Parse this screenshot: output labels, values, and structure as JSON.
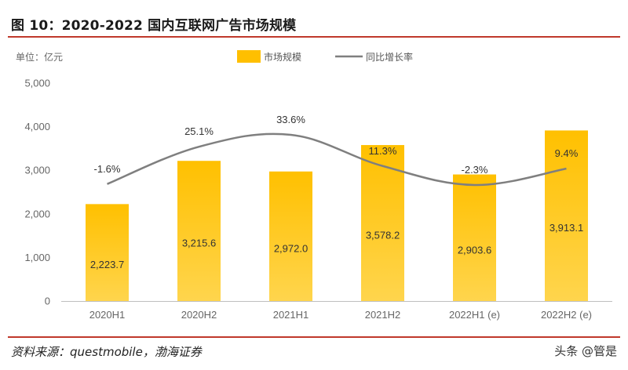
{
  "header": {
    "title": "图 10：2020-2022 国内互联网广告市场规模"
  },
  "footer": {
    "source": "资料来源：questmobile，渤海证券",
    "brand": "头条 @管是"
  },
  "chart_data": {
    "type": "bar",
    "unit_label": "单位：亿元",
    "categories": [
      "2020H1",
      "2020H2",
      "2021H1",
      "2021H2",
      "2022H1 (e)",
      "2022H2 (e)"
    ],
    "series": [
      {
        "name": "市场规模",
        "kind": "bar",
        "color": "#ffbf00",
        "values": [
          2223.7,
          3215.6,
          2972.0,
          3578.2,
          2903.6,
          3913.1
        ],
        "value_labels": [
          "2,223.7",
          "3,215.6",
          "2,972.0",
          "3,578.2",
          "2,903.6",
          "3,913.1"
        ]
      },
      {
        "name": "同比增长率",
        "kind": "line",
        "color": "#7f7f7f",
        "values": [
          -1.6,
          25.1,
          33.6,
          11.3,
          -2.3,
          9.4
        ],
        "value_labels": [
          "-1.6%",
          "25.1%",
          "33.6%",
          "11.3%",
          "-2.3%",
          "9.4%"
        ]
      }
    ],
    "ylim": [
      0,
      5000
    ],
    "yticks": [
      0,
      1000,
      2000,
      3000,
      4000,
      5000
    ],
    "ytick_labels": [
      "0",
      "1,000",
      "2,000",
      "3,000",
      "4,000",
      "5,000"
    ],
    "grid": false,
    "legend_position": "top"
  }
}
